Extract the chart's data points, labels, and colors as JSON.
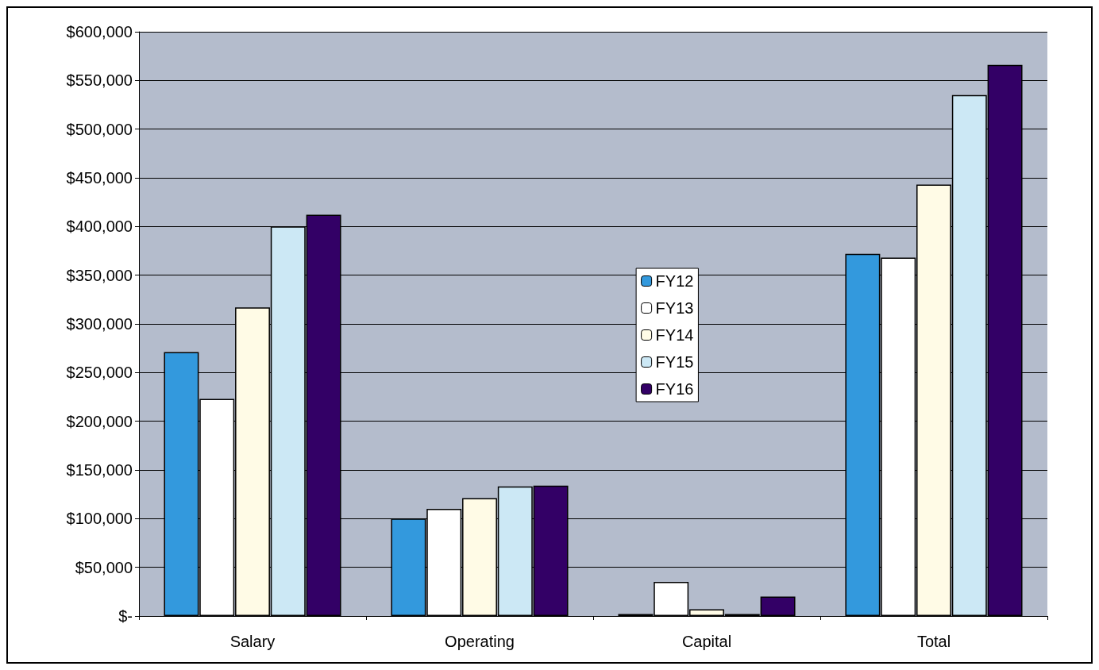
{
  "chart_data": {
    "type": "bar",
    "categories": [
      "Salary",
      "Operating",
      "Capital",
      "Total"
    ],
    "series": [
      {
        "name": "FY12",
        "color": "#3399dd",
        "values": [
          271000,
          100000,
          2000,
          372000
        ]
      },
      {
        "name": "FY13",
        "color": "#ffffff",
        "values": [
          223000,
          110000,
          35000,
          368000
        ]
      },
      {
        "name": "FY14",
        "color": "#fffbe6",
        "values": [
          317000,
          121000,
          7000,
          443000
        ]
      },
      {
        "name": "FY15",
        "color": "#cce8f5",
        "values": [
          400000,
          133000,
          2000,
          535000
        ]
      },
      {
        "name": "FY16",
        "color": "#330066",
        "values": [
          412000,
          134000,
          20000,
          566000
        ]
      }
    ],
    "ylim": [
      0,
      600000
    ],
    "yticks": [
      {
        "value": 0,
        "label": "$-"
      },
      {
        "value": 50000,
        "label": "$50,000"
      },
      {
        "value": 100000,
        "label": "$100,000"
      },
      {
        "value": 150000,
        "label": "$150,000"
      },
      {
        "value": 200000,
        "label": "$200,000"
      },
      {
        "value": 250000,
        "label": "$250,000"
      },
      {
        "value": 300000,
        "label": "$300,000"
      },
      {
        "value": 350000,
        "label": "$350,000"
      },
      {
        "value": 400000,
        "label": "$400,000"
      },
      {
        "value": 450000,
        "label": "$450,000"
      },
      {
        "value": 500000,
        "label": "$500,000"
      },
      {
        "value": 550000,
        "label": "$550,000"
      },
      {
        "value": 600000,
        "label": "$600,000"
      }
    ],
    "grid": "y",
    "legend": "center"
  }
}
